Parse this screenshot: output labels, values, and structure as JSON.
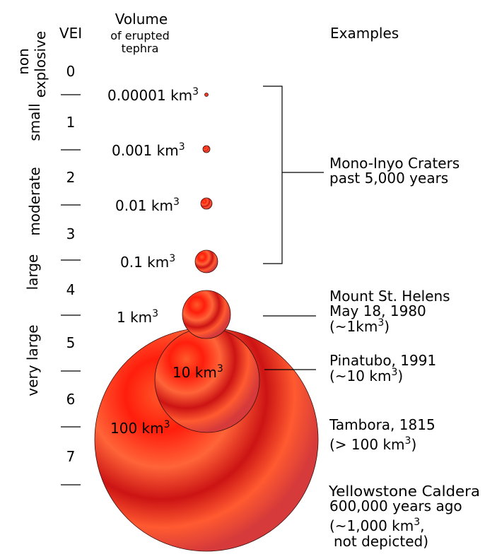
{
  "headers": {
    "vei": "VEI",
    "volume": "Volume",
    "volume_sub1": "of erupted",
    "volume_sub2": "tephra",
    "examples": "Examples"
  },
  "categories": {
    "non": "non",
    "explosive": "explosive",
    "small": "small",
    "moderate": "moderate",
    "large": "large",
    "very_large": "very large"
  },
  "vei_levels": [
    "0",
    "1",
    "2",
    "3",
    "4",
    "5",
    "6",
    "7"
  ],
  "volumes": [
    {
      "value": "0.00001 km",
      "exp": "3",
      "km3": 1e-05
    },
    {
      "value": "0.001 km",
      "exp": "3",
      "km3": 0.001
    },
    {
      "value": "0.01 km",
      "exp": "3",
      "km3": 0.01
    },
    {
      "value": "0.1 km",
      "exp": "3",
      "km3": 0.1
    },
    {
      "value": "1 km",
      "exp": "3",
      "km3": 1
    },
    {
      "value": "10 km",
      "exp": "3",
      "km3": 10
    },
    {
      "value": "100 km",
      "exp": "3",
      "km3": 100
    }
  ],
  "examples": {
    "mono_1": "Mono-Inyo Craters",
    "mono_2": "past 5,000 years",
    "helens_1": "Mount St. Helens",
    "helens_2": "May 18, 1980",
    "helens_3a": "(~1km",
    "helens_3exp": "3",
    "helens_3b": ")",
    "pina_1": "Pinatubo, 1991",
    "pina_2a": "(~10 km",
    "pina_2exp": "3",
    "pina_2b": ")",
    "tamb_1": "Tambora, 1815",
    "tamb_2a": "(> 100 km",
    "tamb_2exp": "3",
    "tamb_2b": ")",
    "yell_1": "Yellowstone Caldera",
    "yell_2": "600,000 years ago",
    "yell_3a": "(~1,000 km",
    "yell_3exp": "3",
    "yell_3b": ",",
    "yell_4": "not depicted)"
  },
  "colors": {
    "sphere_light": "#ff6a3a",
    "sphere_mid": "#ff2a10",
    "sphere_dark": "#c8151b",
    "sphere_edge": "#d63a3a",
    "rule": "#000000"
  }
}
